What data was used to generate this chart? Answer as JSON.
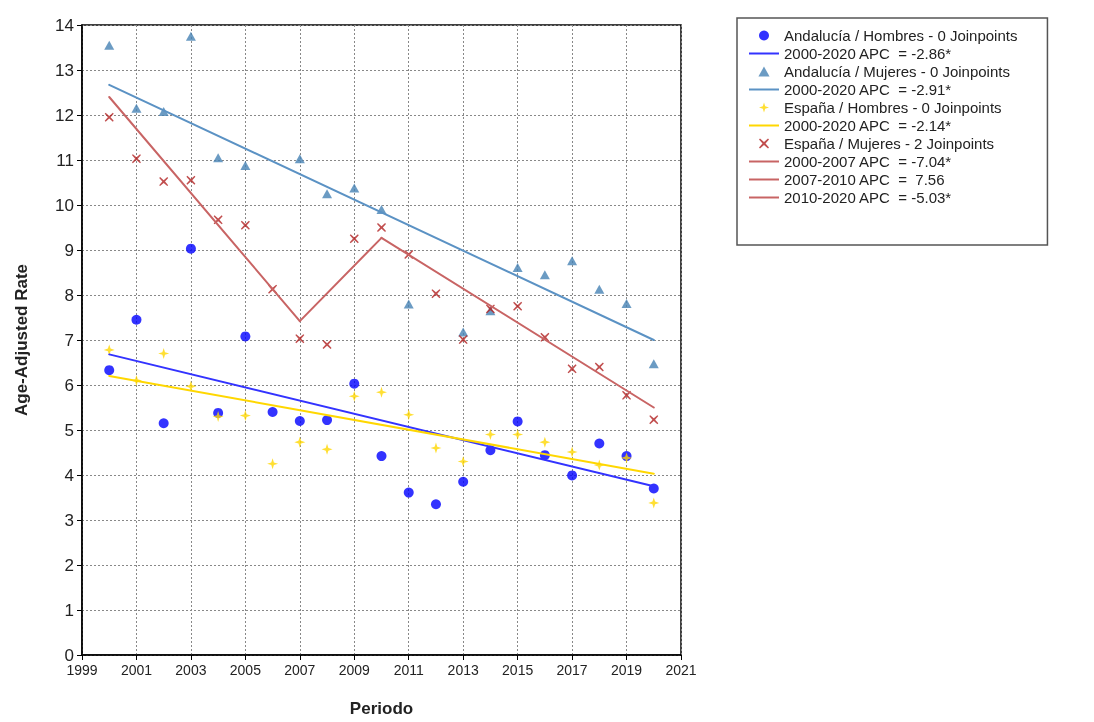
{
  "chart_data": {
    "type": "scatter",
    "xlabel": "Periodo",
    "ylabel": "Age-Adjusted Rate",
    "x": [
      2000,
      2001,
      2002,
      2003,
      2004,
      2005,
      2006,
      2007,
      2008,
      2009,
      2010,
      2011,
      2012,
      2013,
      2014,
      2015,
      2016,
      2017,
      2018,
      2019,
      2020
    ],
    "xlim": [
      1999,
      2021
    ],
    "xticks": [
      1999,
      2001,
      2003,
      2005,
      2007,
      2009,
      2011,
      2013,
      2015,
      2017,
      2019,
      2021
    ],
    "ylim": [
      0,
      14
    ],
    "yticks": [
      0,
      1,
      2,
      3,
      4,
      5,
      6,
      7,
      8,
      9,
      10,
      11,
      12,
      13,
      14
    ],
    "grid": true,
    "legend": "top right",
    "series": [
      {
        "name": "Andalucía / Hombres - 0 Joinpoints",
        "marker": "circle",
        "color": "#0000ff",
        "values": [
          6.33,
          7.45,
          5.15,
          9.03,
          5.38,
          7.08,
          5.4,
          5.2,
          5.22,
          6.03,
          4.42,
          3.61,
          3.35,
          3.85,
          4.55,
          5.19,
          4.44,
          3.99,
          4.7,
          4.42,
          3.7
        ]
      },
      {
        "name": "2000-2020 APC  = -2.86*",
        "type": "line",
        "marker": "none",
        "line_style": "solid",
        "color": "#3333ff",
        "x": [
          2000,
          2020
        ],
        "values": [
          6.68,
          3.75
        ]
      },
      {
        "name": "Andalucía / Mujeres - 0 Joinpoints",
        "marker": "triangle",
        "color": "#4682b4",
        "values": [
          13.55,
          12.15,
          12.08,
          13.75,
          11.05,
          10.88,
          null,
          11.03,
          10.25,
          10.38,
          9.9,
          7.8,
          null,
          7.18,
          7.65,
          8.61,
          8.45,
          8.76,
          8.13,
          7.81,
          6.47
        ]
      },
      {
        "name": "2000-2020 APC  = -2.91*",
        "type": "line",
        "marker": "none",
        "line_style": "solid",
        "color": "#5b92c4",
        "x": [
          2000,
          2020
        ],
        "values": [
          12.67,
          7.0
        ]
      },
      {
        "name": "España / Hombres - 0 Joinpoints",
        "marker": "diamond",
        "color": "#ffd700",
        "values": [
          6.78,
          6.1,
          6.7,
          5.97,
          5.3,
          5.32,
          4.25,
          4.73,
          4.57,
          5.75,
          5.84,
          5.34,
          4.6,
          4.3,
          4.9,
          4.9,
          4.73,
          4.51,
          4.22,
          4.38,
          3.38
        ]
      },
      {
        "name": "2000-2020 APC  = -2.14*",
        "type": "line",
        "marker": "none",
        "line_style": "solid",
        "color": "#ffd700",
        "x": [
          2000,
          2020
        ],
        "values": [
          6.2,
          4.03
        ]
      },
      {
        "name": "España / Mujeres - 2 Joinpoints",
        "marker": "cross",
        "color": "#b22222",
        "values": [
          11.95,
          11.03,
          10.52,
          10.55,
          9.67,
          9.55,
          8.13,
          7.03,
          6.9,
          9.25,
          9.5,
          8.9,
          8.03,
          7.01,
          7.69,
          7.75,
          7.06,
          6.36,
          6.4,
          5.77,
          5.23
        ]
      },
      {
        "name": "2000-2007 APC  = -7.04*",
        "type": "line",
        "marker": "none",
        "line_style": "solid",
        "color": "#c86464",
        "x": [
          2000,
          2007
        ],
        "values": [
          12.4,
          7.42
        ]
      },
      {
        "name": "2007-2010 APC  =  7.56",
        "type": "line",
        "marker": "none",
        "line_style": "solid",
        "color": "#c86464",
        "x": [
          2007,
          2010
        ],
        "values": [
          7.42,
          9.27
        ]
      },
      {
        "name": "2010-2020 APC  = -5.03*",
        "type": "line",
        "marker": "none",
        "line_style": "solid",
        "color": "#c86464",
        "x": [
          2010,
          2020
        ],
        "values": [
          9.27,
          5.5
        ]
      }
    ]
  }
}
